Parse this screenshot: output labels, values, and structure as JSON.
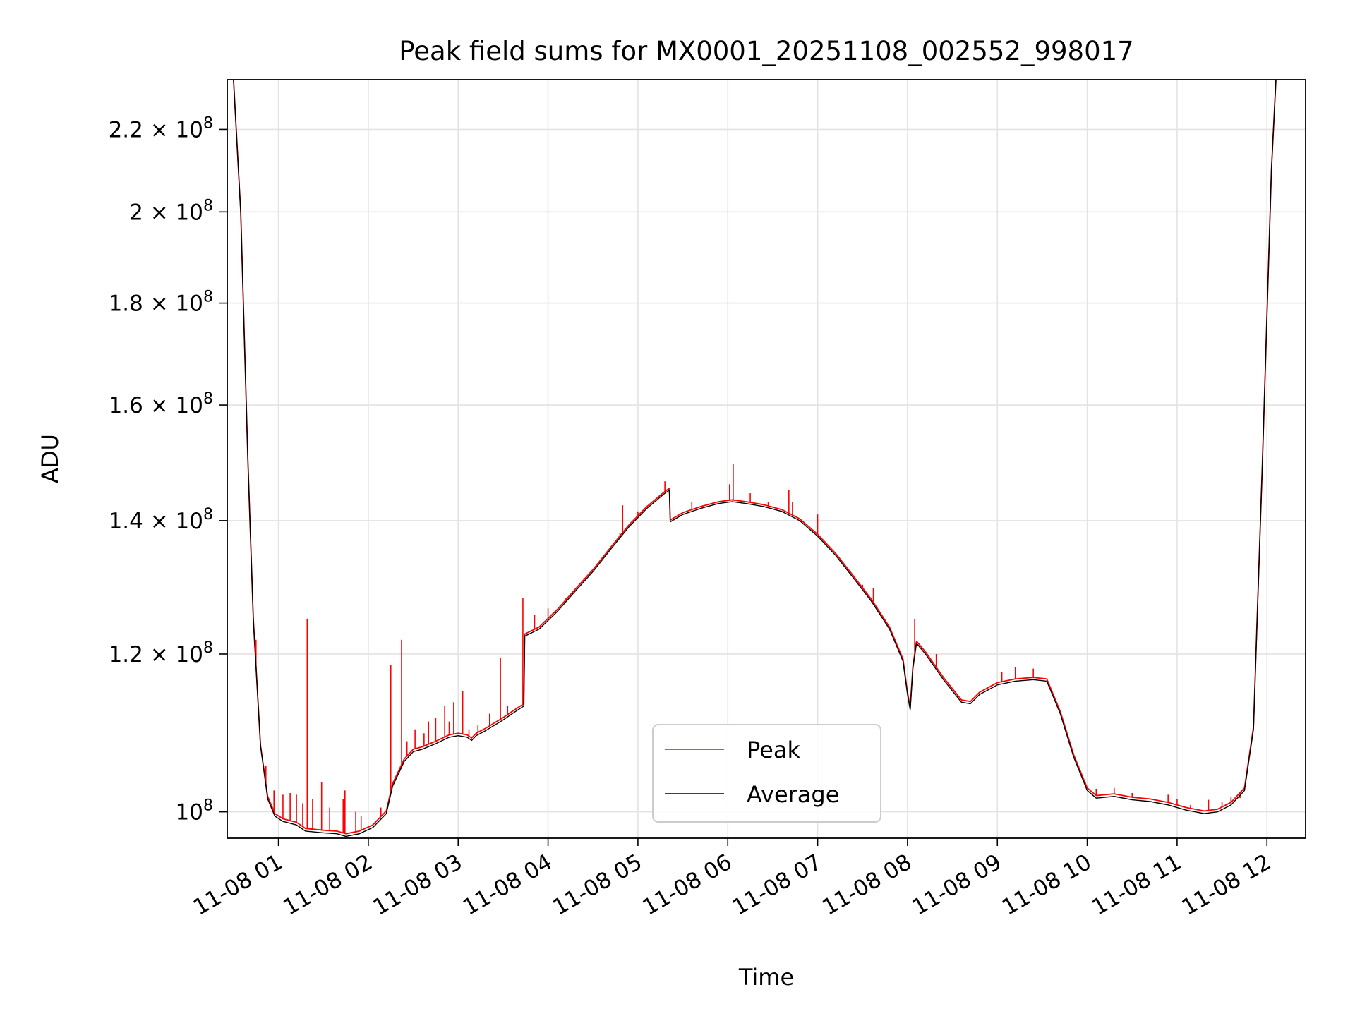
{
  "chart_data": {
    "type": "line",
    "title": "Peak field sums for MX0001_20251108_002552_998017",
    "xlabel": "Time",
    "ylabel": "ADU",
    "yscale": "log",
    "xlim": [
      0.43,
      12.43
    ],
    "ylim": [
      97000000,
      233000000
    ],
    "grid": true,
    "legend_position": "lower-center",
    "x_ticks": [
      {
        "value": 1,
        "label": "11-08 01"
      },
      {
        "value": 2,
        "label": "11-08 02"
      },
      {
        "value": 3,
        "label": "11-08 03"
      },
      {
        "value": 4,
        "label": "11-08 04"
      },
      {
        "value": 5,
        "label": "11-08 05"
      },
      {
        "value": 6,
        "label": "11-08 06"
      },
      {
        "value": 7,
        "label": "11-08 07"
      },
      {
        "value": 8,
        "label": "11-08 08"
      },
      {
        "value": 9,
        "label": "11-08 09"
      },
      {
        "value": 10,
        "label": "11-08 10"
      },
      {
        "value": 11,
        "label": "11-08 11"
      },
      {
        "value": 12,
        "label": "11-08 12"
      }
    ],
    "y_ticks": [
      {
        "value": 100000000,
        "mantissa": "",
        "exponent": "8"
      },
      {
        "value": 120000000,
        "mantissa": "1.2",
        "exponent": "8"
      },
      {
        "value": 140000000,
        "mantissa": "1.4",
        "exponent": "8"
      },
      {
        "value": 160000000,
        "mantissa": "1.6",
        "exponent": "8"
      },
      {
        "value": 180000000,
        "mantissa": "1.8",
        "exponent": "8"
      },
      {
        "value": 200000000,
        "mantissa": "2",
        "exponent": "8"
      },
      {
        "value": 220000000,
        "mantissa": "2.2",
        "exponent": "8"
      }
    ],
    "x_units": "hours since 2025-11-08 00:00",
    "series": [
      {
        "name": "Average",
        "color": "#000000",
        "points": [
          [
            0.5,
            233000000
          ],
          [
            0.58,
            200000000
          ],
          [
            0.66,
            150000000
          ],
          [
            0.72,
            125000000
          ],
          [
            0.8,
            108000000
          ],
          [
            0.88,
            101500000
          ],
          [
            0.96,
            99500000
          ],
          [
            1.05,
            98900000
          ],
          [
            1.2,
            98500000
          ],
          [
            1.3,
            97800000
          ],
          [
            1.5,
            97600000
          ],
          [
            1.65,
            97500000
          ],
          [
            1.75,
            97200000
          ],
          [
            1.9,
            97500000
          ],
          [
            2.05,
            98200000
          ],
          [
            2.2,
            99800000
          ],
          [
            2.27,
            103000000
          ],
          [
            2.4,
            106000000
          ],
          [
            2.5,
            107200000
          ],
          [
            2.6,
            107500000
          ],
          [
            2.75,
            108200000
          ],
          [
            2.9,
            109000000
          ],
          [
            3.0,
            109200000
          ],
          [
            3.1,
            109000000
          ],
          [
            3.15,
            108600000
          ],
          [
            3.2,
            109200000
          ],
          [
            3.3,
            109800000
          ],
          [
            3.5,
            111200000
          ],
          [
            3.6,
            112000000
          ],
          [
            3.73,
            113000000
          ],
          [
            3.74,
            122500000
          ],
          [
            3.9,
            123500000
          ],
          [
            4.1,
            126000000
          ],
          [
            4.3,
            129000000
          ],
          [
            4.5,
            132000000
          ],
          [
            4.7,
            135500000
          ],
          [
            4.9,
            139000000
          ],
          [
            5.1,
            142000000
          ],
          [
            5.3,
            144500000
          ],
          [
            5.35,
            145000000
          ],
          [
            5.36,
            139800000
          ],
          [
            5.5,
            141000000
          ],
          [
            5.7,
            142000000
          ],
          [
            5.9,
            142800000
          ],
          [
            6.05,
            143100000
          ],
          [
            6.2,
            142800000
          ],
          [
            6.4,
            142300000
          ],
          [
            6.6,
            141500000
          ],
          [
            6.8,
            140000000
          ],
          [
            7.0,
            137500000
          ],
          [
            7.2,
            134500000
          ],
          [
            7.4,
            131000000
          ],
          [
            7.6,
            127500000
          ],
          [
            7.8,
            123500000
          ],
          [
            7.95,
            119000000
          ],
          [
            8.0,
            114500000
          ],
          [
            8.03,
            112500000
          ],
          [
            8.06,
            118000000
          ],
          [
            8.1,
            121500000
          ],
          [
            8.2,
            120000000
          ],
          [
            8.4,
            116500000
          ],
          [
            8.6,
            113500000
          ],
          [
            8.7,
            113300000
          ],
          [
            8.8,
            114500000
          ],
          [
            9.0,
            115800000
          ],
          [
            9.2,
            116300000
          ],
          [
            9.4,
            116500000
          ],
          [
            9.55,
            116300000
          ],
          [
            9.7,
            112000000
          ],
          [
            9.85,
            106500000
          ],
          [
            10.0,
            102500000
          ],
          [
            10.1,
            101600000
          ],
          [
            10.3,
            101800000
          ],
          [
            10.5,
            101400000
          ],
          [
            10.7,
            101200000
          ],
          [
            10.9,
            100800000
          ],
          [
            11.1,
            100200000
          ],
          [
            11.3,
            99800000
          ],
          [
            11.45,
            100000000
          ],
          [
            11.6,
            100800000
          ],
          [
            11.75,
            102500000
          ],
          [
            11.85,
            110000000
          ],
          [
            11.95,
            150000000
          ],
          [
            12.05,
            210000000
          ],
          [
            12.1,
            233000000
          ]
        ]
      },
      {
        "name": "Peak",
        "color": "#ff0000",
        "points": [
          [
            0.5,
            233000000
          ],
          [
            0.58,
            200000000
          ],
          [
            0.66,
            150000000
          ],
          [
            0.72,
            125000000
          ],
          [
            0.8,
            108000000
          ],
          [
            0.88,
            101800000
          ],
          [
            0.96,
            99800000
          ],
          [
            1.05,
            99200000
          ],
          [
            1.2,
            98800000
          ],
          [
            1.3,
            98100000
          ],
          [
            1.5,
            97900000
          ],
          [
            1.65,
            97800000
          ],
          [
            1.75,
            97500000
          ],
          [
            1.9,
            97800000
          ],
          [
            2.05,
            98500000
          ],
          [
            2.2,
            100100000
          ],
          [
            2.27,
            103300000
          ],
          [
            2.4,
            106300000
          ],
          [
            2.5,
            107500000
          ],
          [
            2.6,
            107800000
          ],
          [
            2.75,
            108500000
          ],
          [
            2.9,
            109300000
          ],
          [
            3.0,
            109500000
          ],
          [
            3.1,
            109300000
          ],
          [
            3.15,
            108900000
          ],
          [
            3.2,
            109500000
          ],
          [
            3.3,
            110100000
          ],
          [
            3.5,
            111500000
          ],
          [
            3.6,
            112300000
          ],
          [
            3.73,
            113300000
          ],
          [
            3.74,
            122800000
          ],
          [
            3.9,
            123800000
          ],
          [
            4.1,
            126300000
          ],
          [
            4.3,
            129300000
          ],
          [
            4.5,
            132300000
          ],
          [
            4.7,
            135800000
          ],
          [
            4.9,
            139300000
          ],
          [
            5.1,
            142300000
          ],
          [
            5.3,
            144800000
          ],
          [
            5.35,
            145300000
          ],
          [
            5.36,
            140100000
          ],
          [
            5.5,
            141300000
          ],
          [
            5.7,
            142300000
          ],
          [
            5.9,
            143100000
          ],
          [
            6.05,
            143400000
          ],
          [
            6.2,
            143100000
          ],
          [
            6.4,
            142600000
          ],
          [
            6.6,
            141800000
          ],
          [
            6.8,
            140300000
          ],
          [
            7.0,
            137800000
          ],
          [
            7.2,
            134800000
          ],
          [
            7.4,
            131300000
          ],
          [
            7.6,
            127800000
          ],
          [
            7.8,
            123800000
          ],
          [
            7.95,
            119300000
          ],
          [
            8.0,
            114800000
          ],
          [
            8.03,
            112800000
          ],
          [
            8.06,
            118300000
          ],
          [
            8.1,
            121800000
          ],
          [
            8.2,
            120300000
          ],
          [
            8.4,
            116800000
          ],
          [
            8.6,
            113800000
          ],
          [
            8.7,
            113600000
          ],
          [
            8.8,
            114800000
          ],
          [
            9.0,
            116100000
          ],
          [
            9.2,
            116600000
          ],
          [
            9.4,
            116800000
          ],
          [
            9.55,
            116600000
          ],
          [
            9.7,
            112300000
          ],
          [
            9.85,
            106800000
          ],
          [
            10.0,
            102800000
          ],
          [
            10.1,
            101900000
          ],
          [
            10.3,
            102100000
          ],
          [
            10.5,
            101700000
          ],
          [
            10.7,
            101500000
          ],
          [
            10.9,
            101100000
          ],
          [
            11.1,
            100500000
          ],
          [
            11.3,
            100100000
          ],
          [
            11.45,
            100300000
          ],
          [
            11.6,
            101100000
          ],
          [
            11.75,
            102800000
          ],
          [
            11.85,
            110300000
          ],
          [
            11.95,
            150000000
          ],
          [
            12.05,
            210000000
          ],
          [
            12.1,
            233000000
          ]
        ],
        "spikes": [
          [
            0.75,
            122000000
          ],
          [
            0.86,
            105500000
          ],
          [
            0.95,
            102500000
          ],
          [
            1.05,
            102000000
          ],
          [
            1.13,
            102200000
          ],
          [
            1.2,
            102000000
          ],
          [
            1.27,
            101000000
          ],
          [
            1.32,
            125000000
          ],
          [
            1.38,
            101500000
          ],
          [
            1.48,
            103500000
          ],
          [
            1.57,
            100500000
          ],
          [
            1.72,
            101500000
          ],
          [
            1.74,
            102500000
          ],
          [
            1.86,
            100000000
          ],
          [
            1.92,
            99500000
          ],
          [
            2.14,
            100500000
          ],
          [
            2.25,
            118500000
          ],
          [
            2.37,
            122000000
          ],
          [
            2.43,
            108500000
          ],
          [
            2.52,
            110000000
          ],
          [
            2.62,
            109500000
          ],
          [
            2.67,
            111000000
          ],
          [
            2.75,
            111500000
          ],
          [
            2.85,
            113000000
          ],
          [
            2.9,
            111000000
          ],
          [
            2.95,
            113500000
          ],
          [
            3.05,
            115000000
          ],
          [
            3.12,
            110000000
          ],
          [
            3.22,
            110500000
          ],
          [
            3.35,
            112000000
          ],
          [
            3.47,
            119500000
          ],
          [
            3.55,
            113000000
          ],
          [
            3.72,
            128000000
          ],
          [
            3.85,
            125500000
          ],
          [
            4.0,
            126500000
          ],
          [
            4.2,
            128000000
          ],
          [
            4.4,
            131000000
          ],
          [
            4.6,
            134000000
          ],
          [
            4.8,
            138000000
          ],
          [
            4.83,
            142500000
          ],
          [
            5.0,
            141500000
          ],
          [
            5.3,
            146500000
          ],
          [
            5.6,
            143000000
          ],
          [
            6.02,
            146000000
          ],
          [
            6.06,
            149500000
          ],
          [
            6.25,
            144500000
          ],
          [
            6.45,
            143000000
          ],
          [
            6.68,
            145000000
          ],
          [
            6.72,
            143000000
          ],
          [
            7.0,
            141000000
          ],
          [
            7.5,
            130000000
          ],
          [
            7.62,
            129500000
          ],
          [
            8.08,
            125000000
          ],
          [
            8.32,
            120000000
          ],
          [
            9.05,
            117500000
          ],
          [
            9.2,
            118200000
          ],
          [
            9.4,
            118000000
          ],
          [
            10.1,
            102700000
          ],
          [
            10.3,
            102800000
          ],
          [
            10.5,
            102200000
          ],
          [
            10.9,
            102000000
          ],
          [
            11.0,
            101500000
          ],
          [
            11.15,
            100800000
          ],
          [
            11.35,
            101400000
          ],
          [
            11.5,
            101200000
          ],
          [
            11.6,
            101700000
          ],
          [
            11.7,
            101600000
          ]
        ]
      }
    ]
  }
}
